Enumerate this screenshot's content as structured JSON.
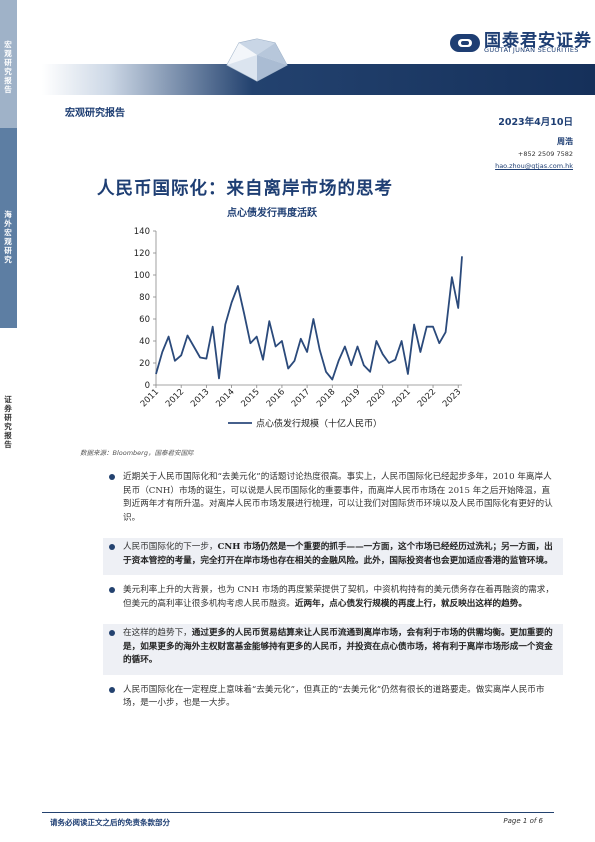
{
  "sidebar": {
    "section1": "宏观研究报告",
    "section2": "海外宏观研究",
    "section3": "证券研究报告"
  },
  "header": {
    "brand_cn": "国泰君安证券",
    "brand_en": "GUOTAI JUNAN SECURITIES",
    "report_type": "宏观研究报告",
    "date": "2023年4月10日",
    "author": "周浩",
    "phone": "+852 2509 7582",
    "email": "hao.zhou@gtjas.com.hk",
    "colors": {
      "brand": "#1e3e73",
      "sidebar_light": "#9fb2c8",
      "sidebar_dark": "#5d7ea3"
    }
  },
  "title": "人民币国际化：来自离岸市场的思考",
  "subtitle": "点心债发行再度活跃",
  "chart_data": {
    "type": "line",
    "title": "",
    "xlabel": "",
    "ylabel": "",
    "ylim": [
      0,
      140
    ],
    "yticks": [
      "0",
      "20",
      "40",
      "60",
      "80",
      "100",
      "120",
      "140"
    ],
    "xticks": [
      "2011",
      "2012",
      "2013",
      "2014",
      "2015",
      "2016",
      "2017",
      "2018",
      "2019",
      "2020",
      "2021",
      "2022",
      "2023"
    ],
    "legend": "bottom-center",
    "grid": false,
    "series": [
      {
        "name": "点心债发行规模（十亿人民币）",
        "color": "#2b4a7b",
        "x": [
          2011.0,
          2011.25,
          2011.5,
          2011.75,
          2012.0,
          2012.25,
          2012.5,
          2012.75,
          2013.0,
          2013.25,
          2013.5,
          2013.75,
          2014.0,
          2014.25,
          2014.5,
          2014.75,
          2015.0,
          2015.25,
          2015.5,
          2015.75,
          2016.0,
          2016.25,
          2016.5,
          2016.75,
          2017.0,
          2017.25,
          2017.5,
          2017.75,
          2018.0,
          2018.25,
          2018.5,
          2018.75,
          2019.0,
          2019.25,
          2019.5,
          2019.75,
          2020.0,
          2020.25,
          2020.5,
          2020.75,
          2021.0,
          2021.25,
          2021.5,
          2021.75,
          2022.0,
          2022.25,
          2022.5,
          2022.75,
          2023.0,
          2023.15
        ],
        "y": [
          10,
          30,
          44,
          22,
          27,
          45,
          35,
          25,
          24,
          53,
          6,
          55,
          75,
          90,
          65,
          38,
          44,
          23,
          58,
          35,
          40,
          15,
          22,
          42,
          30,
          60,
          32,
          12,
          5,
          22,
          35,
          18,
          35,
          18,
          12,
          40,
          28,
          20,
          23,
          40,
          10,
          55,
          30,
          53,
          53,
          38,
          48,
          98,
          70,
          117
        ]
      }
    ]
  },
  "source_note": "数据来源：Bloomberg，国泰君安国际",
  "bullets": [
    {
      "shaded": false,
      "parts": [
        {
          "b": false,
          "t": "近期关于人民币国际化和“去美元化”的话题讨论热度很高。事实上，人民币国际化已经起步多年，2010 年离岸人民币（CNH）市场的诞生，可以说是人民币国际化的重要事件，而离岸人民币市场在 2015 年之后开始降温，直到近两年才有所升温。对离岸人民币市场发展进行梳理，可以让我们对国际货币环境以及人民币国际化有更好的认识。"
        }
      ]
    },
    {
      "shaded": true,
      "parts": [
        {
          "b": false,
          "t": "人民币国际化的下一步，"
        },
        {
          "b": true,
          "t": "CNH 市场仍然是一个重要的抓手——一方面，这个市场已经经历过洗礼；另一方面，出于资本管控的考量，完全打开在岸市场也存在相关的金融风险。此外，国际投资者也会更加适应香港的监管环境。"
        }
      ]
    },
    {
      "shaded": false,
      "parts": [
        {
          "b": false,
          "t": "美元利率上升的大背景，也为 CNH 市场的再度繁荣提供了契机，中资机构持有的美元债务存在着再融资的需求，但美元的高利率让很多机构考虑人民币融资。"
        },
        {
          "b": true,
          "t": "近两年，点心债发行规模的再度上行，就反映出这样的趋势。"
        }
      ]
    },
    {
      "shaded": true,
      "parts": [
        {
          "b": false,
          "t": "在这样的趋势下，"
        },
        {
          "b": true,
          "t": "通过更多的人民币贸易结算来让人民币流通到离岸市场，会有利于市场的供需均衡。更加重要的是，如果更多的海外主权财富基金能够持有更多的人民币，并投资在点心债市场，将有利于离岸市场形成一个资金的循环。"
        }
      ]
    },
    {
      "shaded": false,
      "parts": [
        {
          "b": false,
          "t": "人民币国际化在一定程度上意味着“去美元化”，但真正的“去美元化”仍然有很长的道路要走。做实离岸人民币市场，是一小步，也是一大步。"
        }
      ]
    }
  ],
  "footer": {
    "disclaimer": "请务必阅读正文之后的免责条款部分",
    "page": "Page 1 of 6"
  }
}
